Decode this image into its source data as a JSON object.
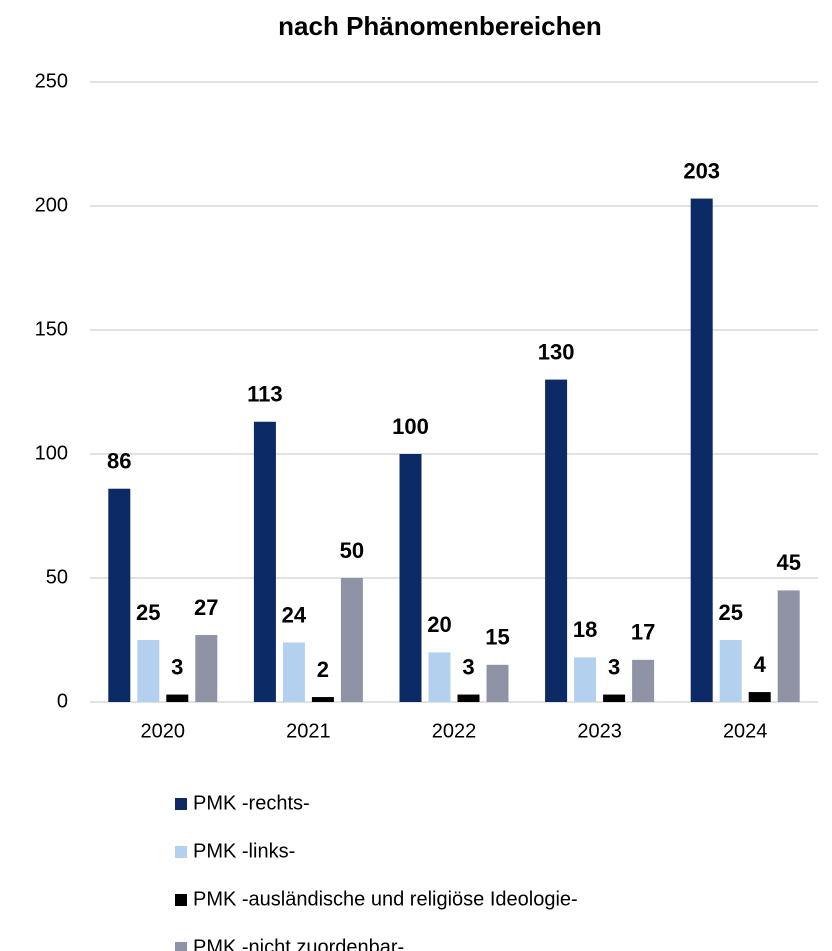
{
  "chart_data": {
    "type": "bar",
    "title": "nach Phänomenbereichen",
    "categories": [
      "2020",
      "2021",
      "2022",
      "2023",
      "2024"
    ],
    "series": [
      {
        "name": "PMK -rechts-",
        "color": "#0b2a66",
        "values": [
          86,
          113,
          100,
          130,
          203
        ]
      },
      {
        "name": "PMK -links-",
        "color": "#b3d0ee",
        "values": [
          25,
          24,
          20,
          18,
          25
        ]
      },
      {
        "name": "PMK -ausländische und religiöse Ideologie-",
        "color": "#000000",
        "values": [
          3,
          2,
          3,
          3,
          4
        ]
      },
      {
        "name": "PMK -nicht zuordenbar-",
        "color": "#9093a6",
        "values": [
          27,
          50,
          15,
          17,
          45
        ]
      }
    ],
    "ylim": [
      0,
      250
    ],
    "yticks": [
      0,
      50,
      100,
      150,
      200,
      250
    ],
    "grid": true,
    "legend": "bottom"
  }
}
